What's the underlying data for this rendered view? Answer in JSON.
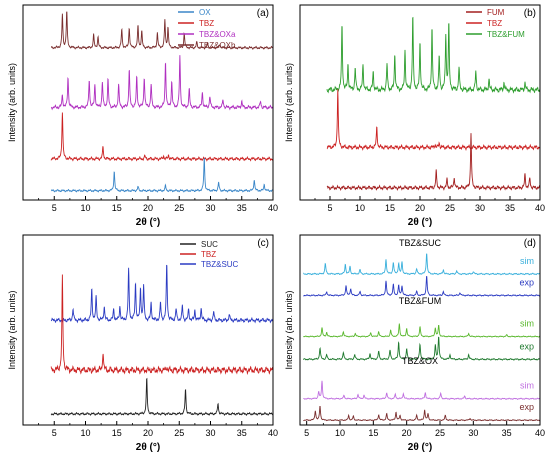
{
  "chart_data": [
    {
      "panel": "(a)",
      "type": "line",
      "xlabel": "2θ (°)",
      "ylabel": "Intensity (arb. units)",
      "xlim": [
        0,
        40
      ],
      "xticks": [
        5,
        10,
        15,
        20,
        25,
        30,
        35,
        40
      ],
      "legend_position": "top-right",
      "legend": [
        {
          "name": "OX",
          "color": "#3a86c8"
        },
        {
          "name": "TBZ",
          "color": "#cc2222"
        },
        {
          "name": "TBZ&OXa",
          "color": "#b030c0"
        },
        {
          "name": "TBZ&OXb",
          "color": "#7a2e2e"
        }
      ],
      "series": [
        {
          "name": "TBZ&OXb",
          "color": "#7a2e2e",
          "offset": 0.8,
          "scale": 0.2,
          "peaks": [
            [
              6.3,
              0.9
            ],
            [
              7.0,
              1.0
            ],
            [
              11.3,
              0.35
            ],
            [
              12.0,
              0.3
            ],
            [
              15.8,
              0.5
            ],
            [
              17.0,
              0.55
            ],
            [
              18.4,
              0.6
            ],
            [
              19.0,
              0.45
            ],
            [
              21.5,
              0.4
            ],
            [
              22.7,
              0.75
            ],
            [
              23.2,
              0.55
            ],
            [
              25.8,
              0.4
            ],
            [
              27.8,
              0.15
            ],
            [
              29.5,
              0.12
            ],
            [
              31.5,
              0.1
            ]
          ]
        },
        {
          "name": "TBZ&OXa",
          "color": "#b030c0",
          "offset": 0.47,
          "scale": 0.28,
          "peaks": [
            [
              6.3,
              0.25
            ],
            [
              7.2,
              0.6
            ],
            [
              10.6,
              0.55
            ],
            [
              11.5,
              0.45
            ],
            [
              12.7,
              0.5
            ],
            [
              13.6,
              0.55
            ],
            [
              15.3,
              0.45
            ],
            [
              17.0,
              0.75
            ],
            [
              18.2,
              0.6
            ],
            [
              19.4,
              0.6
            ],
            [
              20.5,
              0.45
            ],
            [
              22.8,
              0.9
            ],
            [
              23.8,
              0.5
            ],
            [
              25.1,
              1.0
            ],
            [
              26.6,
              0.35
            ],
            [
              28.7,
              0.3
            ],
            [
              29.9,
              0.22
            ],
            [
              32.0,
              0.15
            ],
            [
              35.0,
              0.12
            ],
            [
              38.0,
              0.12
            ]
          ]
        },
        {
          "name": "TBZ",
          "color": "#cc2222",
          "offset": 0.19,
          "scale": 0.26,
          "peaks": [
            [
              6.3,
              1.0
            ],
            [
              12.8,
              0.25
            ],
            [
              19.5,
              0.06
            ],
            [
              22.5,
              0.06
            ],
            [
              23.3,
              0.08
            ]
          ]
        },
        {
          "name": "OX",
          "color": "#3a86c8",
          "offset": 0.02,
          "scale": 0.18,
          "peaks": [
            [
              14.6,
              0.6
            ],
            [
              18.4,
              0.12
            ],
            [
              22.8,
              0.15
            ],
            [
              29.0,
              1.0
            ],
            [
              31.3,
              0.25
            ],
            [
              37.0,
              0.35
            ],
            [
              38.6,
              0.2
            ]
          ]
        }
      ]
    },
    {
      "panel": "(b)",
      "type": "line",
      "xlabel": "2θ (°)",
      "ylabel": "Intensity (arb. units)",
      "xlim": [
        0,
        40
      ],
      "xticks": [
        5,
        10,
        15,
        20,
        25,
        30,
        35,
        40
      ],
      "legend_position": "top-right",
      "legend": [
        {
          "name": "FUM",
          "color": "#a31f1f"
        },
        {
          "name": "TBZ",
          "color": "#cc2222"
        },
        {
          "name": "TBZ&FUM",
          "color": "#2e9e2e"
        }
      ],
      "series": [
        {
          "name": "TBZ&FUM",
          "color": "#2e9e2e",
          "offset": 0.56,
          "scale": 0.4,
          "peaks": [
            [
              7.0,
              0.9
            ],
            [
              8.0,
              0.35
            ],
            [
              9.2,
              0.3
            ],
            [
              10.5,
              0.35
            ],
            [
              12.2,
              0.25
            ],
            [
              14.5,
              0.35
            ],
            [
              15.8,
              0.5
            ],
            [
              17.5,
              0.55
            ],
            [
              18.8,
              1.0
            ],
            [
              20.0,
              0.65
            ],
            [
              22.0,
              0.85
            ],
            [
              23.2,
              0.45
            ],
            [
              24.3,
              0.75
            ],
            [
              24.8,
              0.9
            ],
            [
              26.5,
              0.3
            ],
            [
              29.3,
              0.25
            ],
            [
              31.5,
              0.15
            ],
            [
              34.0,
              0.1
            ],
            [
              37.5,
              0.1
            ]
          ]
        },
        {
          "name": "TBZ",
          "color": "#cc2222",
          "offset": 0.25,
          "scale": 0.32,
          "peaks": [
            [
              6.3,
              1.0
            ],
            [
              12.8,
              0.35
            ],
            [
              22.5,
              0.05
            ],
            [
              23.2,
              0.08
            ]
          ]
        },
        {
          "name": "FUM",
          "color": "#a31f1f",
          "offset": 0.03,
          "scale": 0.3,
          "peaks": [
            [
              22.7,
              0.3
            ],
            [
              24.5,
              0.15
            ],
            [
              25.7,
              0.2
            ],
            [
              28.5,
              1.0
            ],
            [
              37.5,
              0.25
            ],
            [
              38.3,
              0.18
            ]
          ]
        }
      ]
    },
    {
      "panel": "(c)",
      "type": "line",
      "xlabel": "2θ (°)",
      "ylabel": "Intensity (arb. units)",
      "xlim": [
        0,
        40
      ],
      "xticks": [
        5,
        10,
        15,
        20,
        25,
        30,
        35,
        40
      ],
      "legend_position": "top-right",
      "legend": [
        {
          "name": "SUC",
          "color": "#222222"
        },
        {
          "name": "TBZ",
          "color": "#cc2222"
        },
        {
          "name": "TBZ&SUC",
          "color": "#2b3bc2"
        }
      ],
      "series": [
        {
          "name": "TBZ&SUC",
          "color": "#2b3bc2",
          "offset": 0.55,
          "scale": 0.32,
          "peaks": [
            [
              8.0,
              0.2
            ],
            [
              11.0,
              0.55
            ],
            [
              11.7,
              0.4
            ],
            [
              13.0,
              0.25
            ],
            [
              14.5,
              0.2
            ],
            [
              15.5,
              0.25
            ],
            [
              16.9,
              0.9
            ],
            [
              18.0,
              0.65
            ],
            [
              18.8,
              0.55
            ],
            [
              19.3,
              0.6
            ],
            [
              20.5,
              0.3
            ],
            [
              22.0,
              0.3
            ],
            [
              23.0,
              1.0
            ],
            [
              24.5,
              0.2
            ],
            [
              25.5,
              0.25
            ],
            [
              26.5,
              0.2
            ],
            [
              27.5,
              0.18
            ],
            [
              28.5,
              0.22
            ],
            [
              30.5,
              0.15
            ],
            [
              33.0,
              0.1
            ]
          ]
        },
        {
          "name": "TBZ",
          "color": "#cc2222",
          "offset": 0.26,
          "scale": 0.52,
          "peaks": [
            [
              6.3,
              1.0
            ],
            [
              12.8,
              0.2
            ],
            [
              23.0,
              0.04
            ]
          ]
        },
        {
          "name": "SUC",
          "color": "#222222",
          "offset": 0.03,
          "scale": 0.2,
          "peaks": [
            [
              19.8,
              1.0
            ],
            [
              26.0,
              0.7
            ],
            [
              31.2,
              0.3
            ]
          ]
        }
      ]
    },
    {
      "panel": "(d)",
      "type": "line",
      "xlabel": "2θ (°)",
      "ylabel": "Intensity (arb. units)",
      "xlim": [
        4,
        40
      ],
      "xticks": [
        5,
        10,
        15,
        20,
        25,
        30,
        35,
        40
      ],
      "group_labels": [
        "TBZ&SUC",
        "TBZ&FUM",
        "TBZ&OX"
      ],
      "series": [
        {
          "name": "sim",
          "group": "TBZ&SUC",
          "color": "#3ab0dc",
          "offset": 0.82,
          "scale": 0.12,
          "peaks": [
            [
              7.8,
              0.5
            ],
            [
              10.8,
              0.45
            ],
            [
              11.5,
              0.35
            ],
            [
              13.0,
              0.2
            ],
            [
              16.9,
              0.7
            ],
            [
              18.0,
              0.55
            ],
            [
              18.8,
              0.5
            ],
            [
              19.3,
              0.55
            ],
            [
              21.5,
              0.25
            ],
            [
              23.0,
              1.0
            ],
            [
              25.5,
              0.2
            ],
            [
              27.5,
              0.15
            ],
            [
              30.0,
              0.12
            ]
          ]
        },
        {
          "name": "exp",
          "group": "TBZ&SUC",
          "color": "#2b3bc2",
          "offset": 0.7,
          "scale": 0.11,
          "peaks": [
            [
              8.0,
              0.2
            ],
            [
              10.9,
              0.5
            ],
            [
              11.6,
              0.35
            ],
            [
              13.0,
              0.2
            ],
            [
              16.9,
              0.75
            ],
            [
              18.0,
              0.55
            ],
            [
              18.8,
              0.5
            ],
            [
              19.3,
              0.5
            ],
            [
              21.5,
              0.2
            ],
            [
              23.0,
              1.0
            ],
            [
              25.5,
              0.2
            ],
            [
              28.0,
              0.15
            ]
          ]
        },
        {
          "name": "sim",
          "group": "TBZ&FUM",
          "color": "#5ab82e",
          "offset": 0.47,
          "scale": 0.09,
          "peaks": [
            [
              7.3,
              0.55
            ],
            [
              8.0,
              0.25
            ],
            [
              10.5,
              0.3
            ],
            [
              12.3,
              0.2
            ],
            [
              14.6,
              0.25
            ],
            [
              15.8,
              0.3
            ],
            [
              17.6,
              0.4
            ],
            [
              18.9,
              0.8
            ],
            [
              20.0,
              0.5
            ],
            [
              22.0,
              0.6
            ],
            [
              24.3,
              0.55
            ],
            [
              24.8,
              0.7
            ],
            [
              29.3,
              0.2
            ],
            [
              35.0,
              0.1
            ]
          ]
        },
        {
          "name": "exp",
          "group": "TBZ&FUM",
          "color": "#1f7a2e",
          "offset": 0.34,
          "scale": 0.13,
          "peaks": [
            [
              7.0,
              0.5
            ],
            [
              8.0,
              0.2
            ],
            [
              10.5,
              0.3
            ],
            [
              12.2,
              0.2
            ],
            [
              14.5,
              0.25
            ],
            [
              15.8,
              0.35
            ],
            [
              17.5,
              0.4
            ],
            [
              18.8,
              0.75
            ],
            [
              20.0,
              0.45
            ],
            [
              22.0,
              0.65
            ],
            [
              24.3,
              0.6
            ],
            [
              24.8,
              1.0
            ],
            [
              26.5,
              0.2
            ],
            [
              29.3,
              0.2
            ]
          ]
        },
        {
          "name": "sim",
          "group": "TBZ&OX",
          "color": "#c070e0",
          "offset": 0.12,
          "scale": 0.1,
          "peaks": [
            [
              6.8,
              0.4
            ],
            [
              7.3,
              1.0
            ],
            [
              10.6,
              0.2
            ],
            [
              12.7,
              0.25
            ],
            [
              13.6,
              0.2
            ],
            [
              17.0,
              0.35
            ],
            [
              18.3,
              0.25
            ],
            [
              19.5,
              0.3
            ],
            [
              22.8,
              0.35
            ],
            [
              25.1,
              0.3
            ],
            [
              28.7,
              0.15
            ]
          ]
        },
        {
          "name": "exp",
          "group": "TBZ&OX",
          "color": "#7a2e2e",
          "offset": 0.0,
          "scale": 0.09,
          "peaks": [
            [
              6.3,
              0.6
            ],
            [
              7.0,
              0.9
            ],
            [
              11.3,
              0.3
            ],
            [
              12.0,
              0.25
            ],
            [
              15.8,
              0.35
            ],
            [
              17.0,
              0.4
            ],
            [
              18.4,
              0.5
            ],
            [
              19.0,
              0.3
            ],
            [
              21.5,
              0.3
            ],
            [
              22.7,
              0.65
            ],
            [
              23.2,
              0.4
            ],
            [
              25.8,
              0.3
            ],
            [
              29.5,
              0.12
            ]
          ]
        }
      ]
    }
  ]
}
